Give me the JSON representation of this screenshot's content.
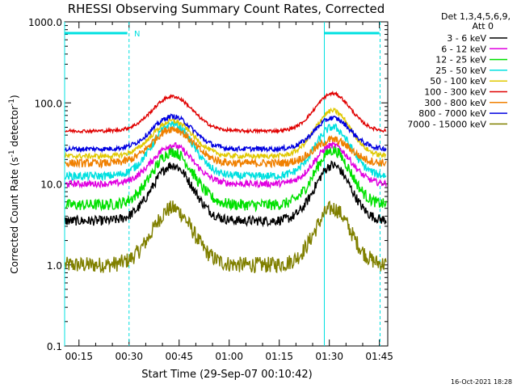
{
  "chart_data": {
    "type": "line",
    "title": "RHESSI Observing Summary Count Rates, Corrected",
    "xlabel": "Start Time (29-Sep-07 00:10:42)",
    "ylabel_main": "Corrected Count Rate (s",
    "ylabel_sup1": "-1",
    "ylabel_mid": " detector",
    "ylabel_sup2": "-1",
    "ylabel_end": ")",
    "y_scale": "log",
    "ylim": [
      0.1,
      1000
    ],
    "xlim_min": [
      10.7,
      47.5
    ],
    "x_ticks": [
      {
        "t": 15,
        "label": "00:15"
      },
      {
        "t": 30,
        "label": "00:30"
      },
      {
        "t": 45,
        "label": "00:45"
      },
      {
        "t": 60,
        "label": "01:00"
      },
      {
        "t": 75,
        "label": "01:15"
      },
      {
        "t": 90,
        "label": "01:30"
      },
      {
        "t": 105,
        "label": "01:45"
      }
    ],
    "y_ticks": [
      {
        "v": 0.1,
        "label": "0.1"
      },
      {
        "v": 1,
        "label": "1.0"
      },
      {
        "v": 10,
        "label": "10.0"
      },
      {
        "v": 100,
        "label": "100.0"
      },
      {
        "v": 1000,
        "label": "1000.0"
      }
    ],
    "legend_header": [
      "Det 1,3,4,5,6,9,",
      "Att 0"
    ],
    "legend_position": "right",
    "series": [
      {
        "name": "3 - 6 keV",
        "color": "#000000",
        "base": 3.5,
        "peak1": 17,
        "peak2": 17,
        "noise": 0.06
      },
      {
        "name": "6 - 12 keV",
        "color": "#e000e0",
        "base": 10,
        "peak1": 30,
        "peak2": 30,
        "noise": 0.04
      },
      {
        "name": "12 - 25 keV",
        "color": "#00e000",
        "base": 5.5,
        "peak1": 25,
        "peak2": 26,
        "noise": 0.07
      },
      {
        "name": "25 - 50 keV",
        "color": "#00e0e0",
        "base": 12.5,
        "peak1": 55,
        "peak2": 50,
        "noise": 0.05
      },
      {
        "name": "50 - 100 keV",
        "color": "#e0c800",
        "base": 22,
        "peak1": 60,
        "peak2": 80,
        "noise": 0.03
      },
      {
        "name": "100 - 300 keV",
        "color": "#e00000",
        "base": 45,
        "peak1": 120,
        "peak2": 130,
        "noise": 0.02
      },
      {
        "name": "300 - 800 keV",
        "color": "#f08000",
        "base": 18,
        "peak1": 48,
        "peak2": 35,
        "noise": 0.05
      },
      {
        "name": "800 - 7000 keV",
        "color": "#0000e0",
        "base": 27,
        "peak1": 68,
        "peak2": 65,
        "noise": 0.03
      },
      {
        "name": "7000 - 15000 keV",
        "color": "#808000",
        "base": 1.0,
        "peak1": 5,
        "peak2": 5,
        "noise": 0.1
      }
    ],
    "saa_label": "N",
    "footer_date": "16-Oct-2021 18:28",
    "colors": {
      "cyan_markers": "#00e0e0"
    }
  }
}
